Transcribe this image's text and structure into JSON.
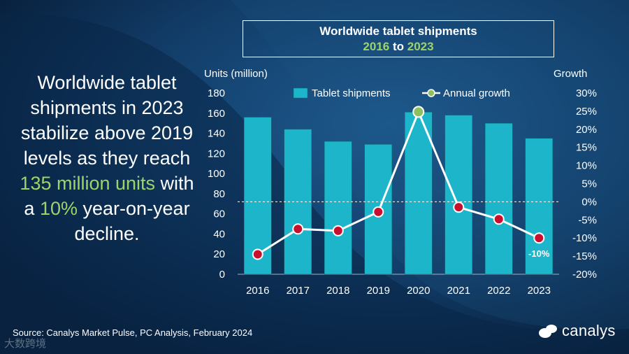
{
  "title": {
    "line1": "Worldwide tablet shipments",
    "line2_start": "2016",
    "line2_mid": " to ",
    "line2_end": "2023"
  },
  "headline": {
    "part1": "Worldwide tablet shipments in 2023 stabilize above 2019 levels as they reach ",
    "highlight1": "135 million units",
    "part2": " with a ",
    "highlight2": "10%",
    "part3": " year-on-year decline."
  },
  "footer": {
    "source": "Source: Canalys Market Pulse, PC Analysis, February 2024"
  },
  "brand": {
    "name": "canalys"
  },
  "watermark": {
    "text": "大数跨境"
  },
  "colors": {
    "bar": "#1cb5c9",
    "line": "#ffffff",
    "point": "#c8102e",
    "point_highlight": "#8fc060",
    "accent_green": "#9ed36a",
    "background": "#0c2a4d"
  },
  "chart_data": {
    "type": "bar",
    "categories": [
      "2016",
      "2017",
      "2018",
      "2019",
      "2020",
      "2021",
      "2022",
      "2023"
    ],
    "series": [
      {
        "name": "Tablet shipments",
        "type": "bar",
        "axis": "left",
        "values": [
          156,
          144,
          132,
          129,
          161,
          158,
          150,
          135
        ]
      },
      {
        "name": "Annual growth",
        "type": "line",
        "axis": "right",
        "values": [
          -14.5,
          -7.5,
          -8,
          -2.8,
          24.8,
          -1.5,
          -4.8,
          -10
        ]
      }
    ],
    "ylabel_left": "Units (million)",
    "ylabel_right": "Growth",
    "ylim_left": [
      0,
      180
    ],
    "yticks_left": [
      "0",
      "20",
      "40",
      "60",
      "80",
      "100",
      "120",
      "140",
      "160",
      "180"
    ],
    "ylim_right": [
      -20,
      30
    ],
    "yticks_right": [
      "-20%",
      "-15%",
      "-10%",
      "-5%",
      "0%",
      "5%",
      "10%",
      "15%",
      "20%",
      "25%",
      "30%"
    ],
    "data_labels": [
      {
        "category": "2023",
        "series": "Annual growth",
        "text": "-10%"
      }
    ],
    "highlight_point": "2020",
    "zero_line_style": "dashed",
    "legend_position": "top-center"
  }
}
